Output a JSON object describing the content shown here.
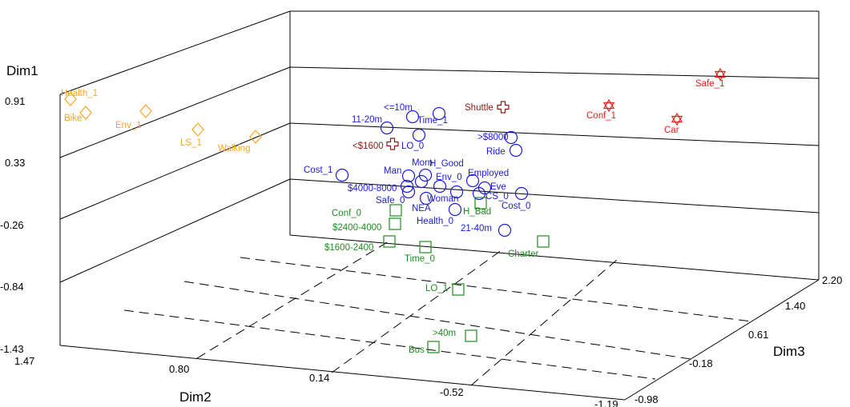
{
  "chart_data": {
    "type": "scatter",
    "title": "",
    "axes": {
      "dim1": {
        "label": "Dim1",
        "ticks": [
          "0.91",
          "0.33",
          "-0.26",
          "-0.84",
          "-1.43"
        ]
      },
      "dim2": {
        "label": "Dim2",
        "ticks": [
          "1.47",
          "0.80",
          "0.14",
          "-0.52",
          "-1.19"
        ]
      },
      "dim3": {
        "label": "Dim3",
        "ticks": [
          "2.20",
          "1.40",
          "0.61",
          "-0.18",
          "-0.98"
        ]
      }
    },
    "series": [
      {
        "marker": "diamond",
        "color": "#f5a623",
        "points": [
          {
            "label": "Health_1"
          },
          {
            "label": "Bike"
          },
          {
            "label": "Env_1"
          },
          {
            "label": "LS_1"
          },
          {
            "label": "Walking"
          }
        ]
      },
      {
        "marker": "star",
        "color": "#e8201c",
        "points": [
          {
            "label": "Safe_1"
          },
          {
            "label": "Conf_1"
          },
          {
            "label": "Car"
          }
        ]
      },
      {
        "marker": "cross",
        "color": "#8b1a1a",
        "points": [
          {
            "label": "Shuttle"
          },
          {
            "label": "<$1600"
          }
        ]
      },
      {
        "marker": "circle",
        "color": "#1c1cd6",
        "points": [
          {
            "label": "<=10m"
          },
          {
            "label": "11-20m"
          },
          {
            "label": "Time_1"
          },
          {
            "label": "LO_0"
          },
          {
            "label": ">$8000"
          },
          {
            "label": "Ride"
          },
          {
            "label": "Cost_1"
          },
          {
            "label": "Morn"
          },
          {
            "label": "Man"
          },
          {
            "label": "H_Good"
          },
          {
            "label": "Env_0"
          },
          {
            "label": "Employed"
          },
          {
            "label": "$4000-8000"
          },
          {
            "label": "Eve"
          },
          {
            "label": "Safe_0"
          },
          {
            "label": "Woman"
          },
          {
            "label": "CS_0"
          },
          {
            "label": "NEA"
          },
          {
            "label": "Cost_0"
          },
          {
            "label": "Health_0"
          },
          {
            "label": "21-40m"
          }
        ]
      },
      {
        "marker": "square",
        "color": "#1f8b1f",
        "points": [
          {
            "label": "H_Bad"
          },
          {
            "label": "Conf_0"
          },
          {
            "label": "$2400-4000"
          },
          {
            "label": "$1600-2400"
          },
          {
            "label": "Time_0"
          },
          {
            "label": "Charter"
          },
          {
            "label": "LO_1"
          },
          {
            "label": ">40m"
          },
          {
            "label": "Bus"
          }
        ]
      }
    ]
  }
}
